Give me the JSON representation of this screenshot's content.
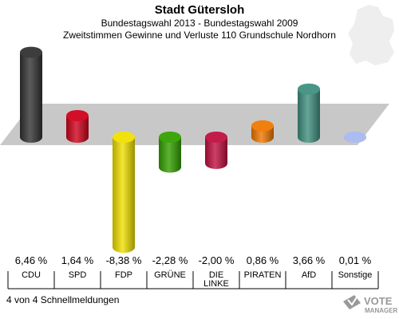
{
  "header": {
    "title": "Stadt Gütersloh",
    "subtitle1": "Bundestagswahl 2013 - Bundestagswahl 2009",
    "subtitle2": "Zweitstimmen Gewinne und Verluste 110 Grundschule Nordhorn"
  },
  "footer": {
    "status": "4 von 4 Schnellmeldungen"
  },
  "logo": {
    "text": "VOTE",
    "subtext": "MANAGER"
  },
  "colors": {
    "background": "#ffffff",
    "floor": "#c8c8c8"
  },
  "chart_data": {
    "type": "bar",
    "title": "Stadt Gütersloh",
    "subtitle": "Zweitstimmen Gewinne und Verluste 110 Grundschule Nordhorn",
    "xlabel": "",
    "ylabel": "",
    "ylim": [
      -8.38,
      6.46
    ],
    "categories": [
      "CDU",
      "SPD",
      "FDP",
      "GRÜNE",
      "DIE LINKE",
      "PIRATEN",
      "AfD",
      "Sonstige"
    ],
    "values": [
      6.46,
      1.64,
      -8.38,
      -2.28,
      -2.0,
      0.86,
      3.66,
      0.01
    ],
    "value_labels": [
      "6,46 %",
      "1,64 %",
      "-8,38 %",
      "-2,28 %",
      "-2,00 %",
      "0,86 %",
      "3,66 %",
      "0,01 %"
    ],
    "category_labels": [
      [
        "CDU"
      ],
      [
        "SPD"
      ],
      [
        "FDP"
      ],
      [
        "GRÜNE"
      ],
      [
        "DIE",
        "LINKE"
      ],
      [
        "PIRATEN"
      ],
      [
        "AfD"
      ],
      [
        "Sonstige"
      ]
    ],
    "colors": [
      "#333333",
      "#d0021b",
      "#f0e000",
      "#33a000",
      "#c01040",
      "#f07800",
      "#409080",
      "#a8b8f0"
    ],
    "grid": false,
    "legend": "none"
  }
}
